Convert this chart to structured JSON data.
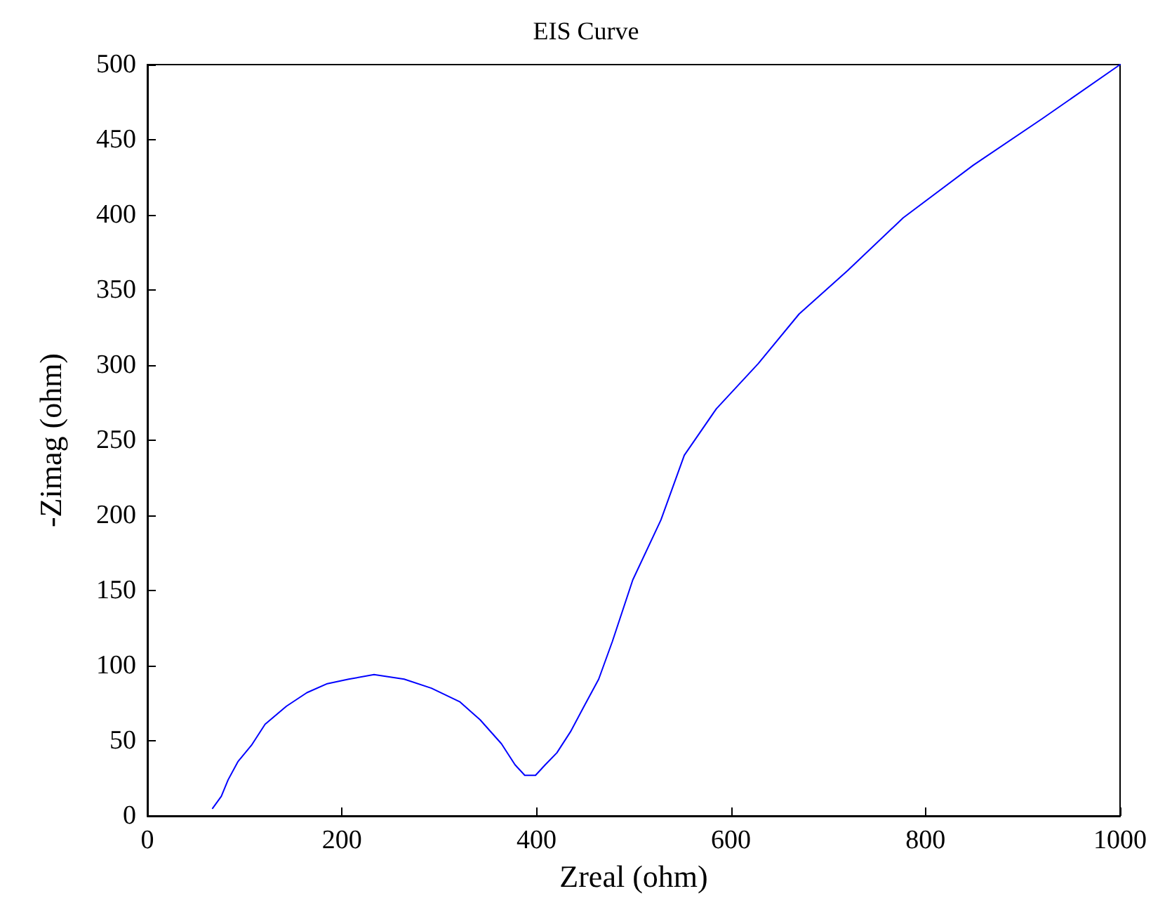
{
  "chart_data": {
    "type": "line",
    "title": "EIS Curve",
    "xlabel": "Zreal (ohm)",
    "ylabel": "-Zimag (ohm)",
    "xlim": [
      0,
      1000
    ],
    "xticks": [
      0,
      200,
      400,
      600,
      800,
      1000
    ],
    "ylim": [
      0,
      500
    ],
    "yticks": [
      0,
      50,
      100,
      150,
      200,
      250,
      300,
      350,
      400,
      450,
      500
    ],
    "grid": false,
    "marker": "none",
    "line_style": "solid",
    "series": [
      {
        "color": "#0000ff",
        "x": [
          67,
          76,
          83,
          93,
          107,
          121,
          143,
          164,
          185,
          207,
          233,
          264,
          292,
          321,
          342,
          364,
          378,
          388,
          399,
          409,
          421,
          435,
          449,
          464,
          478,
          499,
          528,
          552,
          585,
          628,
          670,
          720,
          777,
          849,
          920,
          1000
        ],
        "values": [
          5,
          13,
          24,
          36,
          47,
          61,
          73,
          82,
          88,
          91,
          94,
          91,
          85,
          76,
          64,
          48,
          34,
          27,
          27,
          34,
          42,
          56,
          73,
          91,
          116,
          157,
          197,
          240,
          271,
          301,
          334,
          363,
          398,
          433,
          464,
          500
        ]
      }
    ]
  }
}
